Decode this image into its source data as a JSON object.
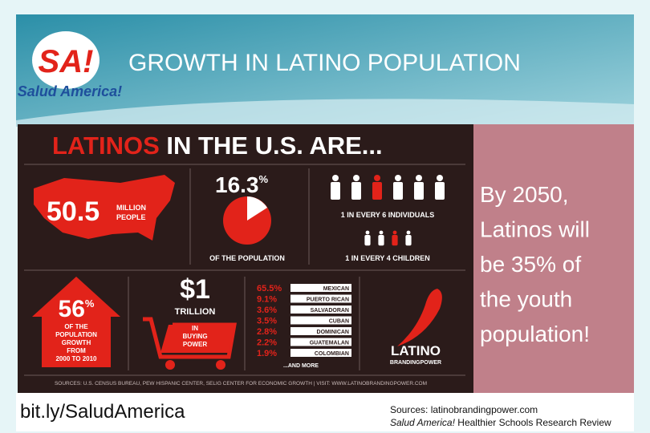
{
  "header": {
    "title": "GROWTH IN LATINO POPULATION"
  },
  "logo": {
    "mark": "SA!",
    "name": "Salud America!"
  },
  "infographic": {
    "heading_highlight": "LATINOS",
    "heading_rest": "IN THE U.S. ARE...",
    "population": {
      "value": "50.5",
      "unit_line1": "MILLION",
      "unit_line2": "PEOPLE"
    },
    "share": {
      "value": "16.3",
      "unit": "%",
      "caption": "OF THE POPULATION"
    },
    "individuals": "1 IN EVERY 6 INDIVIDUALS",
    "children": "1 IN EVERY 4 CHILDREN",
    "growth": {
      "value": "56",
      "unit": "%",
      "lines": [
        "OF THE",
        "POPULATION",
        "GROWTH",
        "FROM",
        "2000 TO 2010"
      ]
    },
    "buying": {
      "value": "$1",
      "unit": "TRILLION",
      "lines": [
        "IN",
        "BUYING",
        "POWER"
      ]
    },
    "origins": [
      [
        "65.5%",
        "MEXICAN"
      ],
      [
        "9.1%",
        "PUERTO RICAN"
      ],
      [
        "3.6%",
        "SALVADORAN"
      ],
      [
        "3.5%",
        "CUBAN"
      ],
      [
        "2.8%",
        "DOMINICAN"
      ],
      [
        "2.2%",
        "GUATEMALAN"
      ],
      [
        "1.9%",
        "COLOMBIAN"
      ]
    ],
    "origins_more": "...AND MORE",
    "brand": {
      "name": "LATINO",
      "sub": "BRANDINGPOWER"
    },
    "sources": "SOURCES: U.S. CENSUS BUREAU, PEW HISPANIC CENTER, SELIG CENTER FOR ECONOMIC GROWTH  |  VISIT: WWW.LATINOBRANDINGPOWER.COM"
  },
  "callout": {
    "lines": [
      "By 2050,",
      "Latinos will",
      "be 35% of",
      "the youth",
      "population!"
    ]
  },
  "footer": {
    "link": "bit.ly/SaludAmerica",
    "sources": "Sources: latinobrandingpower.com",
    "review_italic": "Salud America!",
    "review_rest": " Healthier Schools Research Review"
  }
}
